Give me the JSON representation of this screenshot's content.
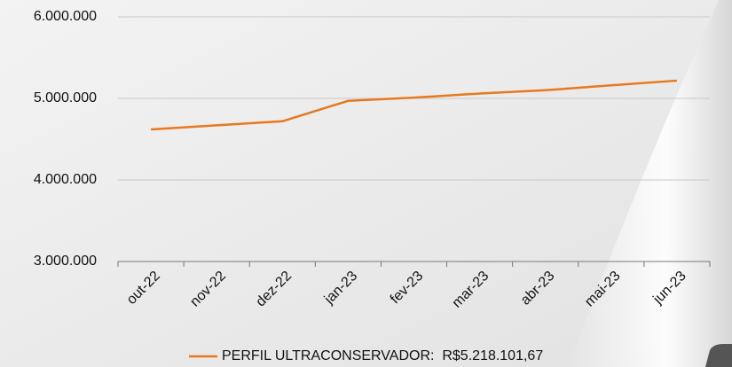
{
  "chart_data": {
    "type": "line",
    "categories": [
      "out-22",
      "nov-22",
      "dez-22",
      "jan-23",
      "fev-23",
      "mar-23",
      "abr-23",
      "mai-23",
      "jun-23"
    ],
    "series": [
      {
        "name": "PERFIL ULTRACONSERVADOR:  R$5.218.101,67",
        "color": "#e8781e",
        "values": [
          4620000,
          4670000,
          4720000,
          4970000,
          5010000,
          5060000,
          5100000,
          5160000,
          5218101.67
        ]
      }
    ],
    "ylim": [
      3000000,
      6000000
    ],
    "yticks": [
      {
        "value": 3000000,
        "label": "3.000.000"
      },
      {
        "value": 4000000,
        "label": "4.000.000"
      },
      {
        "value": 5000000,
        "label": "5.000.000"
      },
      {
        "value": 6000000,
        "label": "6.000.000"
      }
    ],
    "grid": true,
    "legend": "bottom"
  }
}
